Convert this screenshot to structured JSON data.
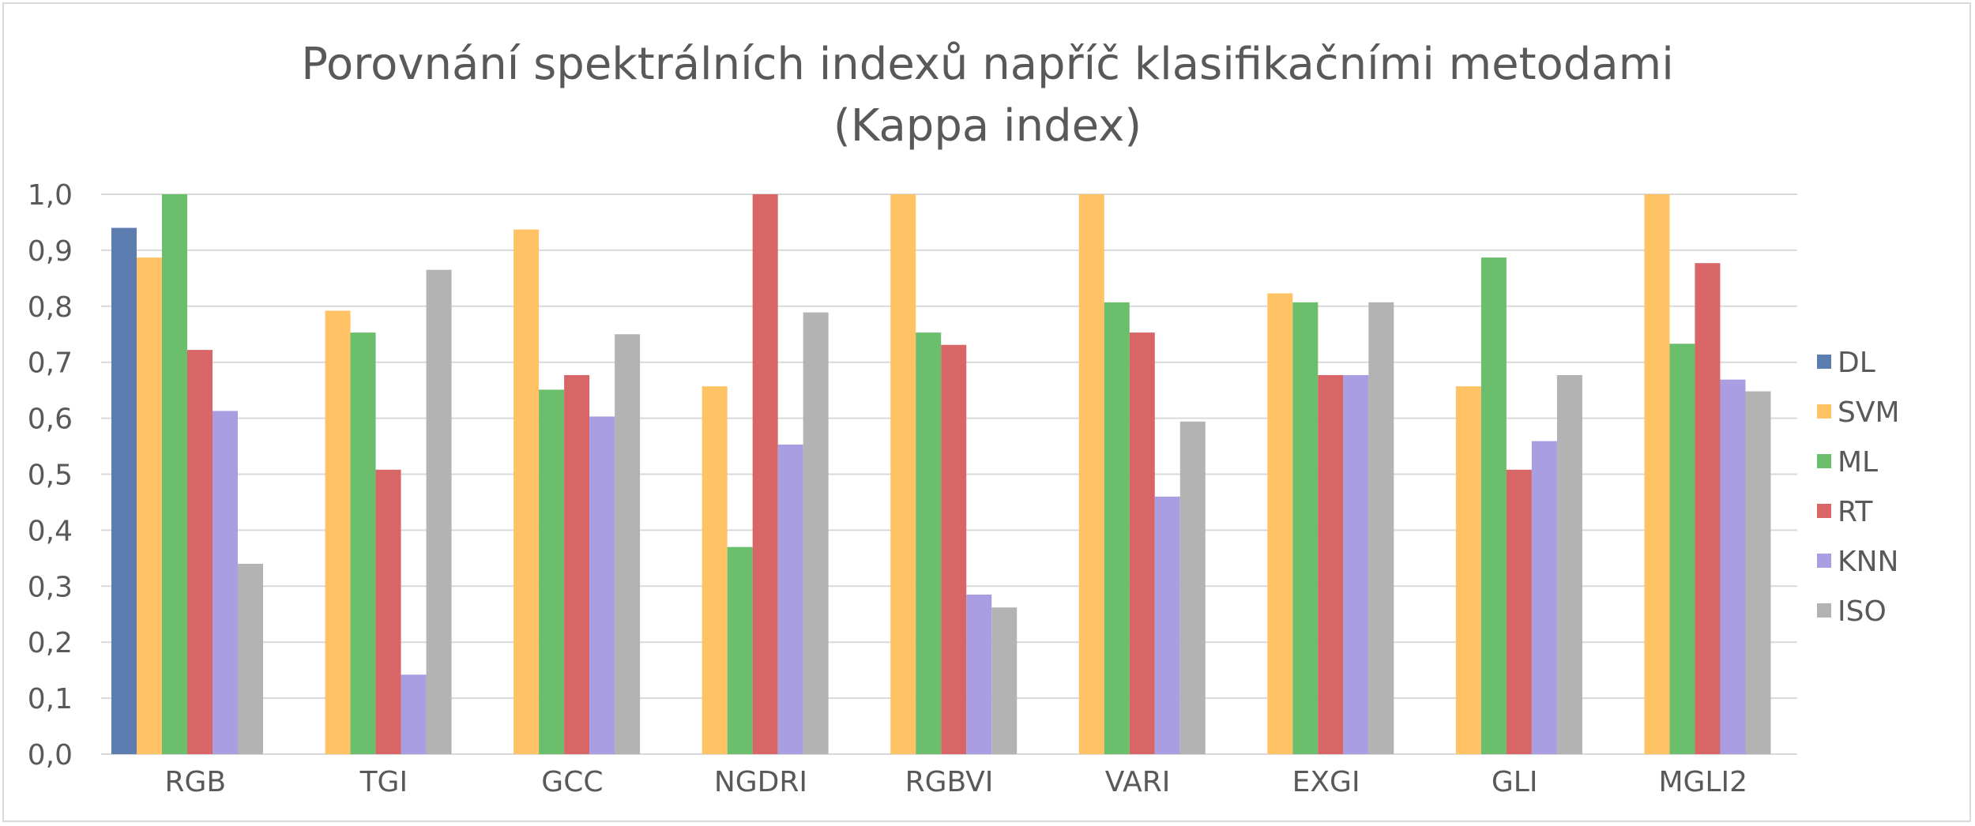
{
  "chart_data": {
    "type": "bar",
    "title": "Porovnání spektrálních indexů napříč klasifikačními metodami",
    "subtitle": "(Kappa index)",
    "categories": [
      "RGB",
      "TGI",
      "GCC",
      "NGDRI",
      "RGBVI",
      "VARI",
      "EXGI",
      "GLI",
      "MGLI2"
    ],
    "y_ticks": [
      "0,0",
      "0,1",
      "0,2",
      "0,3",
      "0,4",
      "0,5",
      "0,6",
      "0,7",
      "0,8",
      "0,9",
      "1,0"
    ],
    "ylim": [
      0,
      1
    ],
    "grid": true,
    "legend_position": "right",
    "series": [
      {
        "name": "DL",
        "color": "#5B7DB0",
        "values": [
          0.94,
          null,
          null,
          null,
          null,
          null,
          null,
          null,
          null
        ]
      },
      {
        "name": "SVM",
        "color": "#FFC264",
        "values": [
          0.887,
          0.792,
          0.937,
          0.657,
          1.0,
          1.0,
          0.823,
          0.657,
          1.0
        ]
      },
      {
        "name": "ML",
        "color": "#6BBE6B",
        "values": [
          1.0,
          0.753,
          0.651,
          0.37,
          0.753,
          0.807,
          0.807,
          0.887,
          0.733
        ]
      },
      {
        "name": "RT",
        "color": "#D86666",
        "values": [
          0.722,
          0.508,
          0.677,
          1.0,
          0.731,
          0.753,
          0.677,
          0.508,
          0.877
        ]
      },
      {
        "name": "KNN",
        "color": "#A99EE2",
        "values": [
          0.613,
          0.142,
          0.603,
          0.553,
          0.285,
          0.46,
          0.677,
          0.559,
          0.669
        ]
      },
      {
        "name": "ISO",
        "color": "#B3B3B3",
        "values": [
          0.34,
          0.865,
          0.75,
          0.789,
          0.262,
          0.594,
          0.807,
          0.677,
          0.648
        ]
      }
    ]
  }
}
